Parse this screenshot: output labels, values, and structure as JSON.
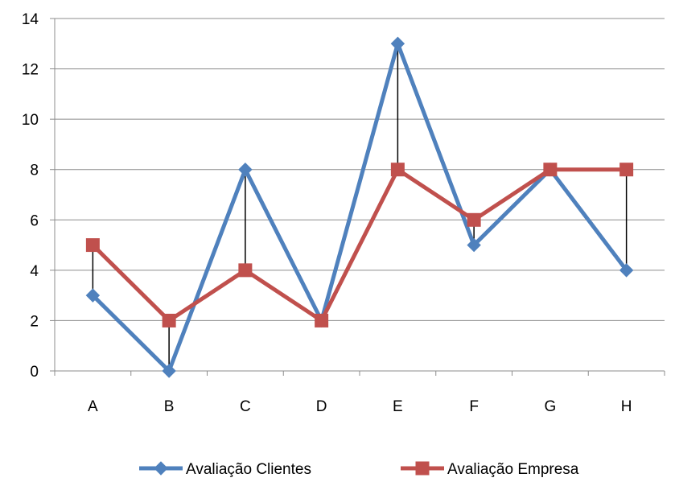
{
  "chart_data": {
    "type": "line",
    "title": "",
    "xlabel": "",
    "ylabel": "",
    "categories": [
      "A",
      "B",
      "C",
      "D",
      "E",
      "F",
      "G",
      "H"
    ],
    "ylim": [
      0,
      14
    ],
    "yticks": [
      0,
      2,
      4,
      6,
      8,
      10,
      12,
      14
    ],
    "grid": true,
    "high_low_lines": true,
    "legend_position": "bottom",
    "series": [
      {
        "name": "Avaliação Clientes",
        "values": [
          3,
          0,
          8,
          2,
          13,
          5,
          8,
          4
        ],
        "color": "#4F81BD",
        "marker": "diamond"
      },
      {
        "name": "Avaliação Empresa",
        "values": [
          5,
          2,
          4,
          2,
          8,
          6,
          8,
          8
        ],
        "color": "#C0504D",
        "marker": "square"
      }
    ]
  }
}
